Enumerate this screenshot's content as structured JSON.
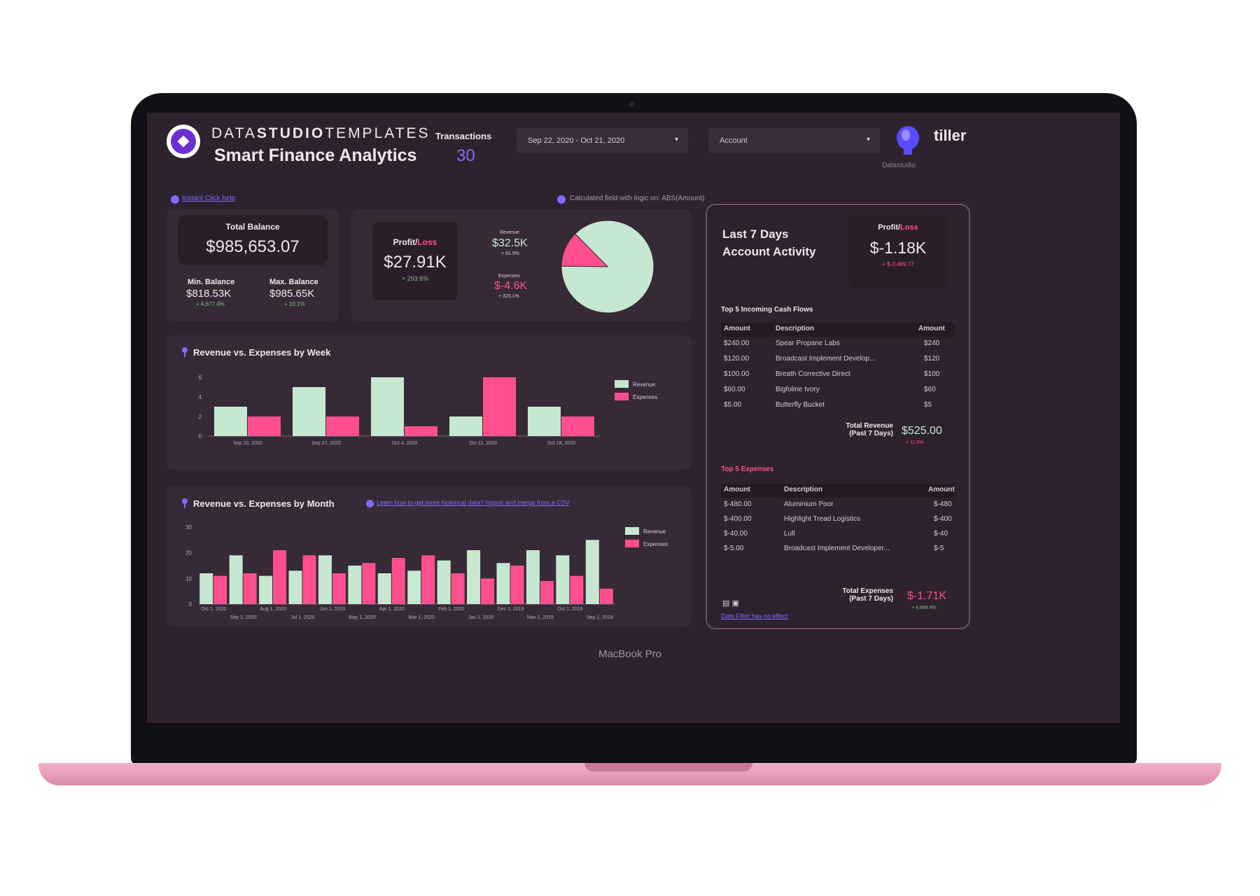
{
  "header": {
    "brand_light": "DATA",
    "brand_bold": "STUDIO",
    "brand_light2": "TEMPLATES",
    "title": "Smart Finance Analytics",
    "transactions_label": "Transactions",
    "transactions_value": "30",
    "date_range": "Sep 22, 2020 - Oct 21, 2020",
    "account_placeholder": "Account",
    "partner_brand": "tiller",
    "partner_sub": "Datastudio"
  },
  "links": {
    "instant_click_help": "Instant Click help",
    "calculated_field_note": "Calculated field with logic on: ABS(Amount)",
    "learn_more": "Learn how to get more historical data? Import and merge from a CSV"
  },
  "balance": {
    "total_label": "Total Balance",
    "total_value": "$985,653.07",
    "min_label": "Min. Balance",
    "min_value": "$818.53K",
    "min_change": "+ 4,677.4%",
    "max_label": "Max. Balance",
    "max_value": "$985.65K",
    "max_change": "+ 10.1%"
  },
  "profit": {
    "label_a": "Profit/",
    "label_b": "Loss",
    "value": "$27.91K",
    "change": "+ 293.6%",
    "revenue_label": "Revenue",
    "revenue_value": "$32.5K",
    "revenue_change": "+ 61.9%",
    "expenses_label": "Expenses",
    "expenses_value": "$-4.6K",
    "expenses_change": "+ 325.1%"
  },
  "last7": {
    "title_line1": "Last 7 Days",
    "title_line2": "Account Activity",
    "pl_label_a": "Profit/",
    "pl_label_b": "Loss",
    "pl_value": "$-1.18K",
    "pl_change": "+ $-3,469.77",
    "incoming_title": "Top 5 Incoming Cash Flows",
    "incoming_headers": [
      "Amount",
      "Description",
      "Amount"
    ],
    "incoming_rows": [
      [
        "$240.00",
        "Spear Propane Labs",
        "$240"
      ],
      [
        "$120.00",
        "Broadcast Implement Develop...",
        "$120"
      ],
      [
        "$100.00",
        "Breath Corrective Direct",
        "$100"
      ],
      [
        "$60.00",
        "Bigfoline Ivory",
        "$60"
      ],
      [
        "$5.00",
        "Butterfly Bucket",
        "$5"
      ]
    ],
    "total_revenue_label1": "Total Revenue",
    "total_revenue_label2": "(Past 7 Days)",
    "total_revenue_value": "$525.00",
    "total_revenue_change": "+ 11.6%",
    "expenses_title": "Top 5 Expenses",
    "expenses_headers": [
      "Amount",
      "Description",
      "Amount"
    ],
    "expenses_rows": [
      [
        "$-480.00",
        "Aluminium Poor",
        "$-480"
      ],
      [
        "$-400.00",
        "Highlight Tread Logistics",
        "$-400"
      ],
      [
        "$-40.00",
        "Lull",
        "$-40"
      ],
      [
        "$-5.00",
        "Broadcast Implement Developer...",
        "$-5"
      ]
    ],
    "total_expenses_label1": "Total Expenses",
    "total_expenses_label2": "(Past 7 Days)",
    "total_expenses_value": "$-1.71K",
    "total_expenses_change": "+ 4,669.4%",
    "date_filter_note": "Date Filter has no effect"
  },
  "chart_data": [
    {
      "type": "pie",
      "labels": [
        "Revenue",
        "Expenses"
      ],
      "values": [
        87.6,
        12.4
      ],
      "colors": [
        "#c6e8d0",
        "#ff4f8e"
      ]
    },
    {
      "type": "bar",
      "title": "Revenue vs. Expenses by Week",
      "categories": [
        "Sep 20, 2020",
        "Sep 27, 2020",
        "Oct 4, 2020",
        "Oct 11, 2020",
        "Oct 18, 2020"
      ],
      "series": [
        {
          "name": "Revenue",
          "values": [
            3,
            5,
            6,
            2,
            3
          ],
          "color": "#c6e8d0"
        },
        {
          "name": "Expenses",
          "values": [
            2,
            2,
            1,
            6,
            2
          ],
          "color": "#ff4f8e"
        }
      ],
      "yticks": [
        0,
        2,
        4,
        6
      ],
      "ylim": [
        0,
        6
      ],
      "legend": "right"
    },
    {
      "type": "bar",
      "title": "Revenue vs. Expenses by Month",
      "categories": [
        "Oct 1, 2020",
        "Sep 1, 2020",
        "Aug 1, 2020",
        "Jul 1, 2020",
        "Jun 1, 2020",
        "May 1, 2020",
        "Apr 1, 2020",
        "Mar 1, 2020",
        "Feb 1, 2020",
        "Jan 1, 2020",
        "Dec 1, 2019",
        "Nov 1, 2019",
        "Oct 1, 2019",
        "Sep 1, 2019"
      ],
      "series": [
        {
          "name": "Revenue",
          "values": [
            12,
            19,
            11,
            13,
            19,
            15,
            12,
            13,
            17,
            21,
            16,
            21,
            19,
            25
          ],
          "color": "#c6e8d0"
        },
        {
          "name": "Expenses",
          "values": [
            11,
            12,
            21,
            19,
            12,
            16,
            18,
            19,
            12,
            10,
            15,
            9,
            11,
            6
          ],
          "color": "#ff4f8e"
        }
      ],
      "yticks": [
        0,
        10,
        20,
        30
      ],
      "ylim": [
        0,
        30
      ],
      "legend": "right"
    }
  ],
  "device": {
    "label": "MacBook Pro"
  }
}
